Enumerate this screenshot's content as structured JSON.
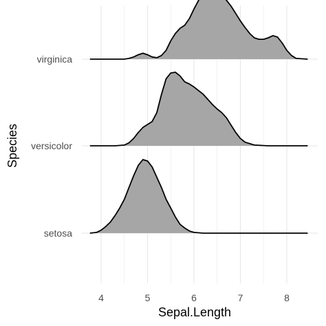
{
  "chart_data": {
    "type": "area",
    "subtype": "ridgeline-density",
    "title": "",
    "xlabel": "Sepal.Length",
    "ylabel": "Species",
    "xlim": [
      3.7,
      8.6
    ],
    "x_ticks": [
      4,
      5,
      6,
      7,
      8
    ],
    "x_tick_labels": [
      "4",
      "5",
      "6",
      "7",
      "8"
    ],
    "grid": true,
    "legend": "none",
    "fill_color": "#a6a6a6",
    "line_color": "#000000",
    "grid_color": "#e6e6e6",
    "categories": [
      "setosa",
      "versicolor",
      "virginica"
    ],
    "series": [
      {
        "name": "setosa",
        "x": [
          3.76,
          3.9,
          4.0,
          4.1,
          4.2,
          4.3,
          4.4,
          4.5,
          4.6,
          4.7,
          4.8,
          4.9,
          5.0,
          5.1,
          5.2,
          5.3,
          5.4,
          5.5,
          5.6,
          5.7,
          5.8,
          5.9,
          6.0,
          6.2,
          6.5,
          7.0,
          7.5,
          8.0,
          8.45
        ],
        "density": [
          0.0,
          0.01,
          0.04,
          0.09,
          0.15,
          0.24,
          0.34,
          0.46,
          0.62,
          0.78,
          0.92,
          1.0,
          0.98,
          0.9,
          0.76,
          0.62,
          0.46,
          0.34,
          0.22,
          0.12,
          0.07,
          0.03,
          0.01,
          0.0,
          0.0,
          0.0,
          0.0,
          0.0,
          0.0
        ]
      },
      {
        "name": "versicolor",
        "x": [
          3.76,
          4.0,
          4.3,
          4.5,
          4.6,
          4.7,
          4.8,
          4.9,
          5.0,
          5.1,
          5.2,
          5.3,
          5.4,
          5.5,
          5.6,
          5.7,
          5.8,
          5.9,
          6.0,
          6.1,
          6.2,
          6.3,
          6.4,
          6.5,
          6.6,
          6.7,
          6.8,
          6.9,
          7.0,
          7.1,
          7.3,
          7.6,
          8.0,
          8.45
        ],
        "density": [
          0.0,
          0.0,
          0.0,
          0.01,
          0.04,
          0.1,
          0.18,
          0.25,
          0.29,
          0.33,
          0.45,
          0.7,
          0.91,
          0.99,
          1.0,
          0.95,
          0.87,
          0.84,
          0.8,
          0.75,
          0.7,
          0.63,
          0.56,
          0.5,
          0.45,
          0.38,
          0.28,
          0.18,
          0.1,
          0.05,
          0.01,
          0.0,
          0.0,
          0.0
        ]
      },
      {
        "name": "virginica",
        "x": [
          3.76,
          4.3,
          4.5,
          4.6,
          4.7,
          4.8,
          4.9,
          5.0,
          5.1,
          5.2,
          5.3,
          5.4,
          5.5,
          5.6,
          5.7,
          5.8,
          5.9,
          6.0,
          6.1,
          6.2,
          6.3,
          6.4,
          6.5,
          6.6,
          6.7,
          6.8,
          6.9,
          7.0,
          7.1,
          7.2,
          7.3,
          7.4,
          7.5,
          7.6,
          7.7,
          7.8,
          7.9,
          8.0,
          8.1,
          8.2,
          8.45
        ],
        "density": [
          0.0,
          0.0,
          0.0,
          0.01,
          0.03,
          0.06,
          0.08,
          0.06,
          0.03,
          0.02,
          0.05,
          0.12,
          0.25,
          0.35,
          0.42,
          0.46,
          0.55,
          0.68,
          0.8,
          0.92,
          1.0,
          0.97,
          0.91,
          0.86,
          0.8,
          0.72,
          0.62,
          0.52,
          0.43,
          0.35,
          0.29,
          0.27,
          0.27,
          0.29,
          0.32,
          0.3,
          0.22,
          0.12,
          0.05,
          0.01,
          0.0
        ]
      }
    ]
  }
}
